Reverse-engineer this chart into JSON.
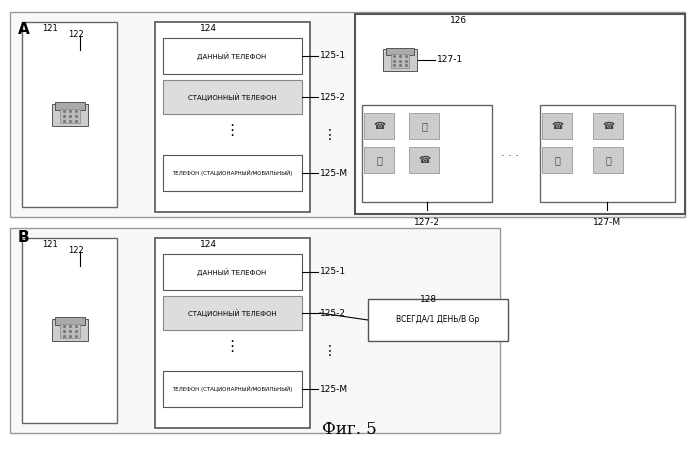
{
  "bg_color": "#ffffff",
  "fig_label": "Фиг. 5",
  "section_A_label": "A",
  "section_B_label": "B",
  "row1_text": "ДАННЫЙ ТЕЛЕФОН",
  "row2_text": "СТАЦИОННЫЙ ТЕЛЕФОН",
  "row3_text": "ТЕЛЕФОН (СТАЦИОНАРНЫЙ/МОБИЛЬНЫЙ)",
  "box128_text": "ВСЕГДА/1 ДЕНЬ/В Gp",
  "label_121": "121",
  "label_122": "122",
  "label_124": "124",
  "label_125_1": "125-1",
  "label_125_2": "125-2",
  "label_125_M": "125-M",
  "label_126": "126",
  "label_127_1": "127-1",
  "label_127_2": "127-2",
  "label_127_M": "127-M",
  "label_128": "128"
}
